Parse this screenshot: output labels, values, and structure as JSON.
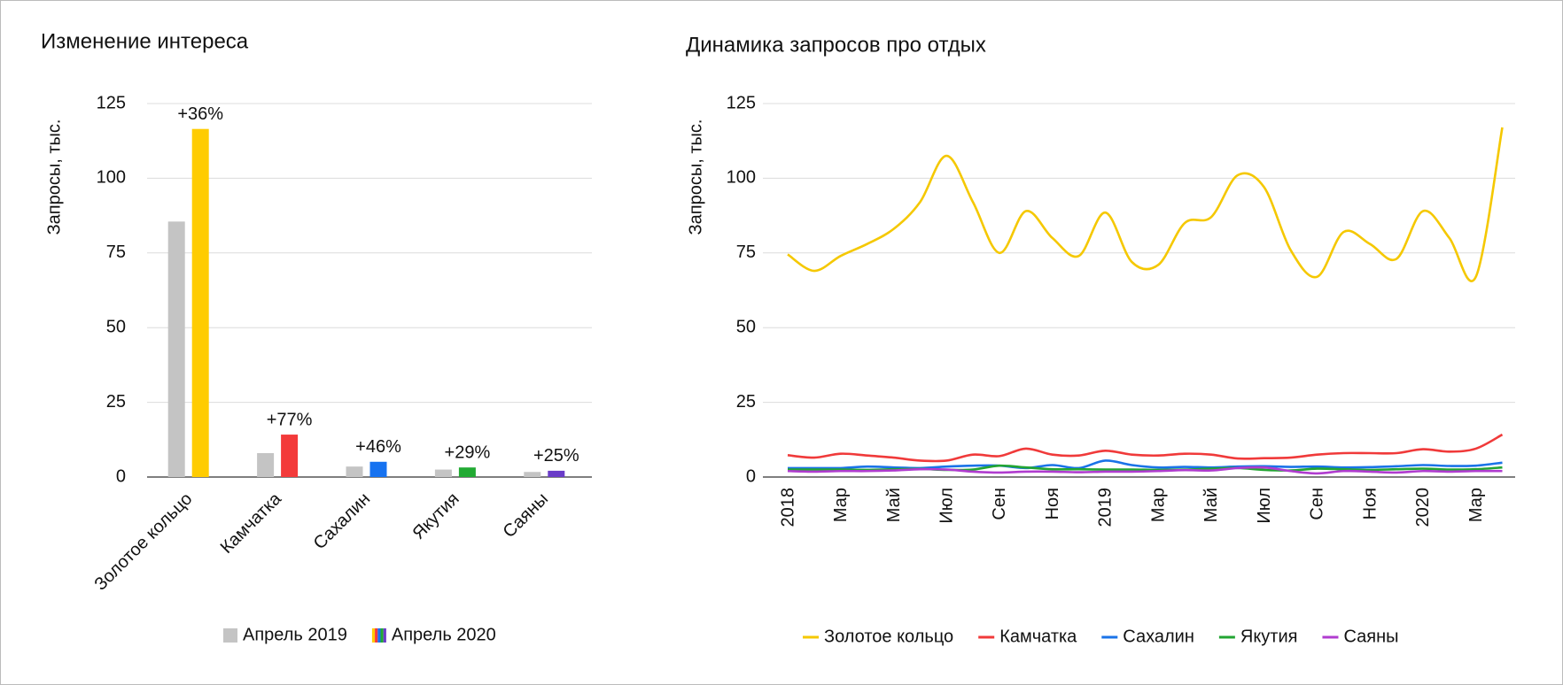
{
  "chart_data": [
    {
      "type": "bar",
      "title": "Изменение интереса",
      "y_label": "Запросы, тыс.",
      "categories": [
        "Золотое кольцо",
        "Камчатка",
        "Сахалин",
        "Якутия",
        "Саяны"
      ],
      "series": [
        {
          "name": "Апрель 2019",
          "color": "#c4c4c4",
          "values": [
            85.5,
            8,
            3.5,
            2.5,
            1.7
          ]
        },
        {
          "name": "Апрель 2020",
          "colors": [
            "#ffcc00",
            "#f33a3a",
            "#1672f0",
            "#22aa33",
            "#6a3cc8"
          ],
          "values": [
            116.5,
            14.2,
            5.1,
            3.2,
            2.1
          ]
        }
      ],
      "annotations": [
        "+36%",
        "+77%",
        "+46%",
        "+29%",
        "+25%"
      ],
      "ylim": [
        0,
        125
      ],
      "yticks": [
        0,
        25,
        50,
        75,
        100,
        125
      ],
      "grid": true
    },
    {
      "type": "line",
      "title": "Динамика запросов про отдых",
      "y_label": "Запросы, тыс.",
      "categories": [
        "2018",
        null,
        "Мар",
        null,
        "Май",
        null,
        "Июл",
        null,
        "Сен",
        null,
        "Ноя",
        null,
        "2019",
        null,
        "Мар",
        null,
        "Май",
        null,
        "Июл",
        null,
        "Сен",
        null,
        "Ноя",
        null,
        "2020",
        null,
        "Мар",
        null
      ],
      "series": [
        {
          "name": "Золотое кольцо",
          "color": "#f5c800",
          "values": [
            74.5,
            69,
            74,
            78,
            83,
            92,
            107.5,
            92,
            75,
            89,
            80,
            74,
            88.5,
            72,
            71,
            85,
            87,
            101,
            97,
            76,
            67,
            82,
            78,
            73,
            89,
            80,
            67,
            117
          ]
        },
        {
          "name": "Камчатка",
          "color": "#f03a3a",
          "values": [
            7.3,
            6.5,
            7.8,
            7.2,
            6.5,
            5.5,
            5.5,
            7.5,
            7,
            9.5,
            7.5,
            7.2,
            8.8,
            7.5,
            7.2,
            7.8,
            7.5,
            6.2,
            6.3,
            6.5,
            7.5,
            8,
            8,
            8,
            9.3,
            8.5,
            9.5,
            14.2
          ]
        },
        {
          "name": "Сахалин",
          "color": "#1a73e8",
          "values": [
            3,
            3,
            3,
            3.5,
            3.2,
            3,
            3.5,
            3.8,
            3.8,
            3,
            4,
            3,
            5.5,
            4,
            3.2,
            3.4,
            3.2,
            3.5,
            3.6,
            3.4,
            3.5,
            3.2,
            3.3,
            3.6,
            4,
            3.7,
            3.8,
            4.8
          ]
        },
        {
          "name": "Якутия",
          "color": "#22a532",
          "values": [
            2.5,
            2.5,
            2.5,
            2.4,
            2.6,
            2.7,
            2.4,
            2.5,
            3.8,
            3.2,
            2.6,
            2.6,
            2.5,
            2.5,
            2.4,
            2.5,
            2.8,
            3,
            2.4,
            2.2,
            2.8,
            2.6,
            2.4,
            2.6,
            2.8,
            2.5,
            2.6,
            3.2
          ]
        },
        {
          "name": "Саяны",
          "color": "#b03ccf",
          "values": [
            2,
            1.8,
            2,
            2,
            2.2,
            2.6,
            2.5,
            1.8,
            1.5,
            1.8,
            1.8,
            1.6,
            1.8,
            1.8,
            2,
            2.3,
            2.2,
            3,
            3.2,
            2,
            1.2,
            2,
            1.8,
            1.5,
            2,
            1.8,
            2,
            2
          ]
        }
      ],
      "ylim": [
        0,
        125
      ],
      "yticks": [
        0,
        25,
        50,
        75,
        100,
        125
      ],
      "grid": true
    }
  ]
}
